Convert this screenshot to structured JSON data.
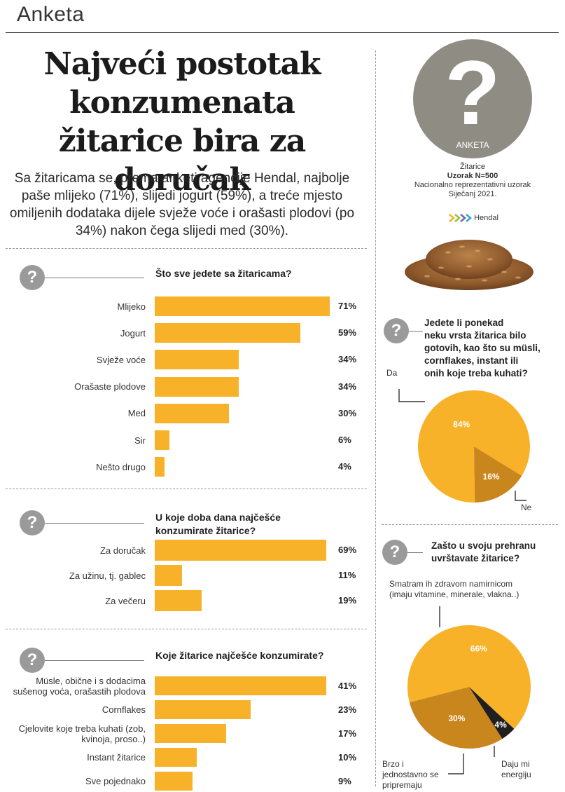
{
  "header": {
    "section": "Anketa"
  },
  "headline": "Najveći postotak konzumenata žitarice bira za doručak",
  "lede": "Sa žitaricama se, prema anketi agencije Hendal, najbolje paše mlijeko (71%), slijedi jogurt (59%), a treće mjesto omiljenih dodataka dijele svježe voće i orašasti plodovi (po 34%) nakon čega slijedi med (30%).",
  "sidebar": {
    "badge_mark": "?",
    "badge_label": "ANKETA",
    "topic": "Žitarice",
    "sample": "Uzorak N=500",
    "sample_type": "Nacionalno reprezentativni uzorak",
    "date": "Siječanj 2021.",
    "logo_text": "Hendal",
    "icon": "grain-pile-image"
  },
  "colors": {
    "bar": "#f7b229",
    "pie_main": "#f7b229",
    "pie_second": "#c8861c",
    "pie_third": "#1f1f1f",
    "icon_grey": "#9a9a9a"
  },
  "chart_data": [
    {
      "type": "bar",
      "title": "Što sve jedete sa žitaricama?",
      "categories": [
        "Mlijeko",
        "Jogurt",
        "Svježe voće",
        "Orašaste plodove",
        "Med",
        "Sir",
        "Nešto drugo"
      ],
      "values": [
        71,
        59,
        34,
        34,
        30,
        6,
        4
      ],
      "value_labels": [
        "71%",
        "59%",
        "34%",
        "34%",
        "30%",
        "6%",
        "4%"
      ],
      "unit": "%"
    },
    {
      "type": "bar",
      "title": "U koje doba dana najčešće konzumirate žitarice?",
      "categories": [
        "Za doručak",
        "Za užinu, tj. gablec",
        "Za večeru"
      ],
      "values": [
        69,
        11,
        19
      ],
      "value_labels": [
        "69%",
        "11%",
        "19%"
      ],
      "unit": "%"
    },
    {
      "type": "bar",
      "title": "Koje žitarice najčešće konzumirate?",
      "categories": [
        "Müsle, obične i s dodacima sušenog voća, orašastih plodova",
        "Cornflakes",
        "Cjelovite koje treba kuhati (zob, kvinoja, proso..)",
        "Instant žitarice",
        "Sve pojednako"
      ],
      "category_lines": [
        [
          "Müsle, obične i s dodacima",
          "sušenog voća, orašastih plodova"
        ],
        [
          "Cornflakes"
        ],
        [
          "Cjelovite koje treba kuhati (zob,",
          "kvinoja, proso..)"
        ],
        [
          "Instant žitarice"
        ],
        [
          "Sve pojednako"
        ]
      ],
      "values": [
        41,
        23,
        17,
        10,
        9
      ],
      "value_labels": [
        "41%",
        "23%",
        "17%",
        "10%",
        "9%"
      ],
      "unit": "%"
    },
    {
      "type": "pie",
      "title": "Jedete li ponekad neku vrsta žitarica bilo gotovih, kao što su müsli, cornflakes, instant ili onih koje treba kuhati?",
      "title_lines": [
        "Jedete li ponekad",
        "neku vrsta žitarica bilo",
        "gotovih, kao što su müsli,",
        "cornflakes, instant ili",
        "onih koje treba kuhati?"
      ],
      "categories": [
        "Da",
        "Ne"
      ],
      "values": [
        84,
        16
      ],
      "value_labels": [
        "84%",
        "16%"
      ]
    },
    {
      "type": "pie",
      "title": "Zašto u svoju prehranu uvrštavate žitarice?",
      "title_lines": [
        "Zašto u svoju prehranu",
        "uvrštavate žitarice?"
      ],
      "categories": [
        "Smatram ih zdravom namirnicom (imaju vitamine, minerale, vlakna..)",
        "Brzo i jednostavno se pripremaju",
        "Daju mi energiju"
      ],
      "category_lines": [
        [
          "Smatram ih zdravom namirnicom",
          "(imaju vitamine, minerale, vlakna..)"
        ],
        [
          "Brzo i",
          "jednostavno se",
          "pripremaju"
        ],
        [
          "Daju mi",
          "energiju"
        ]
      ],
      "values": [
        66,
        30,
        4
      ],
      "value_labels": [
        "66%",
        "30%",
        "4%"
      ]
    }
  ]
}
